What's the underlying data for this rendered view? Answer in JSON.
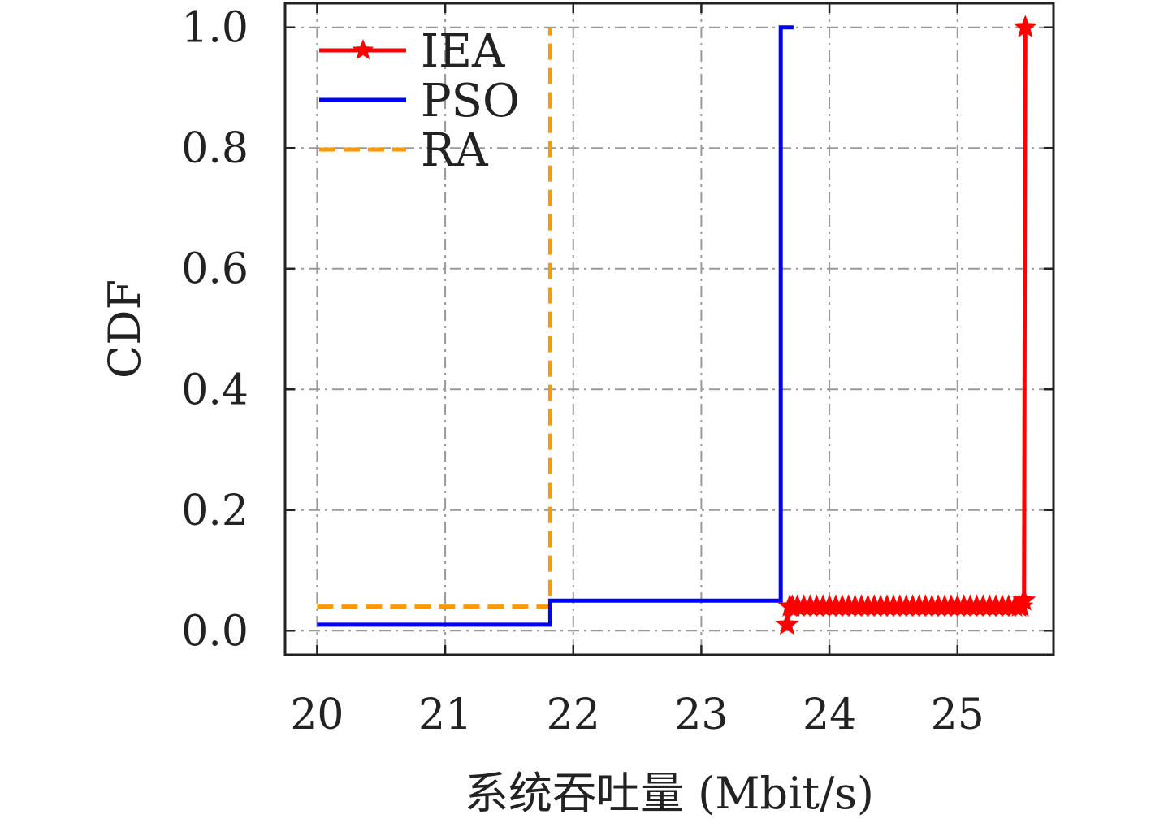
{
  "chart_data": {
    "type": "line",
    "xlabel": "系统吞吐量 (Mbit/s)",
    "ylabel": "CDF",
    "xlim": [
      19.75,
      25.75
    ],
    "ylim": [
      -0.04,
      1.04
    ],
    "xticks": [
      20,
      21,
      22,
      23,
      24,
      25
    ],
    "yticks": [
      0.0,
      0.2,
      0.4,
      0.6,
      0.8,
      1.0
    ],
    "xtick_labels": [
      "20",
      "21",
      "22",
      "23",
      "24",
      "25"
    ],
    "ytick_labels": [
      "0.0",
      "0.2",
      "0.4",
      "0.6",
      "0.8",
      "1.0"
    ],
    "grid": true,
    "legend_position": "top-left",
    "series": [
      {
        "name": "IEA",
        "color": "#ff0000",
        "style": "solid",
        "marker": "star",
        "x": [
          23.67,
          23.69,
          23.71,
          23.75,
          23.8,
          23.85,
          23.9,
          23.95,
          24.0,
          24.05,
          24.1,
          24.15,
          24.2,
          24.25,
          24.3,
          24.35,
          24.4,
          24.45,
          24.5,
          24.55,
          24.6,
          24.65,
          24.7,
          24.75,
          24.8,
          24.85,
          24.9,
          24.95,
          25.0,
          25.05,
          25.1,
          25.15,
          25.2,
          25.25,
          25.3,
          25.35,
          25.4,
          25.45,
          25.48,
          25.5,
          25.52,
          25.53
        ],
        "y": [
          0.01,
          0.04,
          0.04,
          0.04,
          0.04,
          0.04,
          0.04,
          0.04,
          0.04,
          0.04,
          0.04,
          0.04,
          0.04,
          0.04,
          0.04,
          0.04,
          0.04,
          0.04,
          0.04,
          0.04,
          0.04,
          0.04,
          0.04,
          0.04,
          0.04,
          0.04,
          0.04,
          0.04,
          0.04,
          0.04,
          0.04,
          0.04,
          0.04,
          0.04,
          0.04,
          0.04,
          0.04,
          0.04,
          0.04,
          0.04,
          0.05,
          1.0
        ]
      },
      {
        "name": "PSO",
        "color": "#0000ff",
        "style": "solid",
        "marker": "none",
        "x": [
          20.0,
          21.82,
          21.82,
          23.62,
          23.62,
          23.72
        ],
        "y": [
          0.01,
          0.01,
          0.05,
          0.05,
          1.0,
          1.0
        ]
      },
      {
        "name": "RA",
        "color": "#ff9900",
        "style": "dashed",
        "marker": "none",
        "x": [
          20.0,
          21.82,
          21.82
        ],
        "y": [
          0.04,
          0.04,
          1.0
        ]
      }
    ]
  }
}
